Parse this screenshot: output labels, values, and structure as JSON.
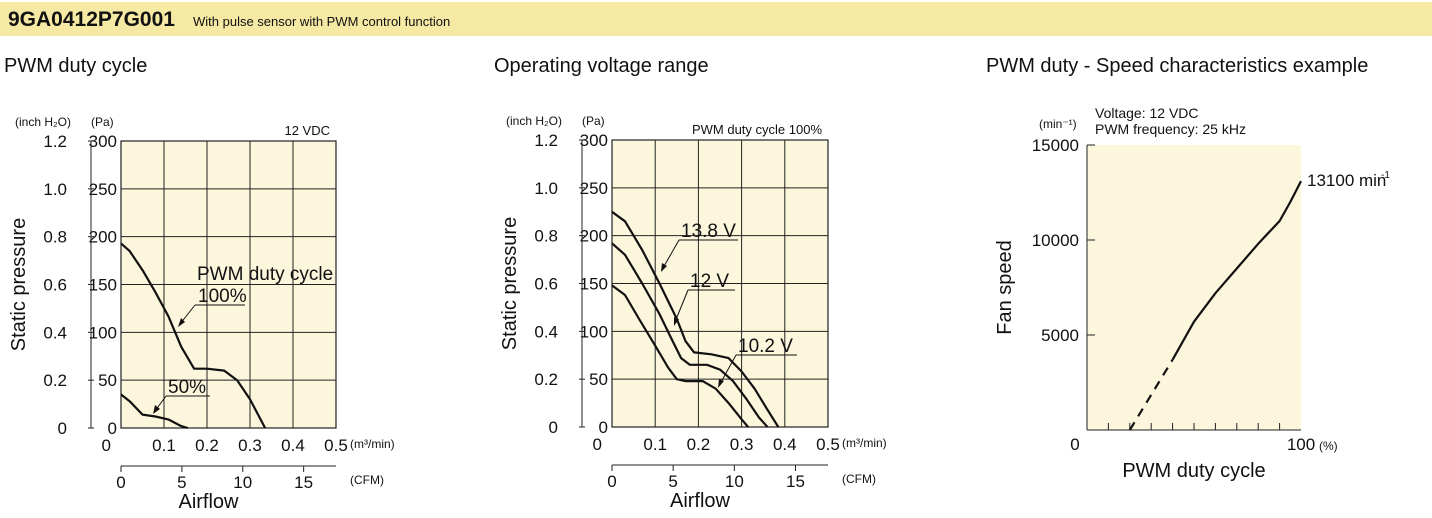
{
  "header": {
    "model": "9GA0412P7G001",
    "description": "With pulse sensor with PWM control function"
  },
  "colors": {
    "header_bg": "#f5e9a4",
    "plot_bg": "#fbf6dc",
    "line": "#111111"
  },
  "chart_data": [
    {
      "type": "line",
      "section_title": "PWM duty cycle",
      "xlabel": "Airflow",
      "ylabel": "Static pressure",
      "y_unit_inch": "(inch H₂O)",
      "y_unit_pa": "(Pa)",
      "x_unit_m3": "(m³/min)",
      "x_unit_cfm": "(CFM)",
      "condition": "12 VDC",
      "xlim_m3": [
        0,
        0.5
      ],
      "ylim_pa": [
        0,
        300
      ],
      "x_ticks_m3": [
        "0",
        "0.1",
        "0.2",
        "0.3",
        "0.4",
        "0.5"
      ],
      "x_ticks_cfm": [
        "0",
        "5",
        "10",
        "15"
      ],
      "y_ticks_pa": [
        "0",
        "50",
        "100",
        "150",
        "200",
        "250",
        "300"
      ],
      "y_ticks_inch": [
        "0",
        "0.2",
        "0.4",
        "0.6",
        "0.8",
        "1.0",
        "1.2"
      ],
      "series": [
        {
          "name": "100%",
          "label": "100%",
          "label_top": "PWM duty cycle",
          "x": [
            0,
            0.02,
            0.05,
            0.08,
            0.11,
            0.14,
            0.17,
            0.2,
            0.24,
            0.27,
            0.3,
            0.335
          ],
          "y": [
            193,
            185,
            165,
            142,
            117,
            85,
            62,
            62,
            60,
            50,
            30,
            0
          ]
        },
        {
          "name": "50%",
          "label": "50%",
          "x": [
            0,
            0.02,
            0.05,
            0.08,
            0.11,
            0.14,
            0.155
          ],
          "y": [
            35,
            28,
            14,
            12,
            9,
            2,
            0
          ]
        }
      ]
    },
    {
      "type": "line",
      "section_title": "Operating voltage range",
      "xlabel": "Airflow",
      "ylabel": "Static pressure",
      "y_unit_inch": "(inch H₂O)",
      "y_unit_pa": "(Pa)",
      "x_unit_m3": "(m³/min)",
      "x_unit_cfm": "(CFM)",
      "condition": "PWM duty cycle 100%",
      "xlim_m3": [
        0,
        0.5
      ],
      "ylim_pa": [
        0,
        300
      ],
      "x_ticks_m3": [
        "0",
        "0.1",
        "0.2",
        "0.3",
        "0.4",
        "0.5"
      ],
      "x_ticks_cfm": [
        "0",
        "5",
        "10",
        "15"
      ],
      "y_ticks_pa": [
        "0",
        "50",
        "100",
        "150",
        "200",
        "250",
        "300"
      ],
      "y_ticks_inch": [
        "0",
        "0.2",
        "0.4",
        "0.6",
        "0.8",
        "1.0",
        "1.2"
      ],
      "series": [
        {
          "name": "13.8 V",
          "label": "13.8 V",
          "x": [
            0,
            0.03,
            0.07,
            0.11,
            0.15,
            0.17,
            0.19,
            0.23,
            0.27,
            0.3,
            0.33,
            0.36,
            0.385
          ],
          "y": [
            225,
            215,
            185,
            150,
            113,
            90,
            78,
            76,
            72,
            58,
            40,
            18,
            0
          ]
        },
        {
          "name": "12 V",
          "label": "12 V",
          "x": [
            0,
            0.03,
            0.07,
            0.11,
            0.14,
            0.16,
            0.18,
            0.22,
            0.25,
            0.28,
            0.31,
            0.34,
            0.36
          ],
          "y": [
            192,
            180,
            150,
            118,
            90,
            72,
            65,
            65,
            60,
            48,
            30,
            10,
            0
          ]
        },
        {
          "name": "10.2 V",
          "label": "10.2 V",
          "x": [
            0,
            0.03,
            0.06,
            0.1,
            0.13,
            0.15,
            0.17,
            0.21,
            0.24,
            0.27,
            0.3,
            0.315
          ],
          "y": [
            148,
            138,
            115,
            85,
            62,
            50,
            48,
            48,
            40,
            25,
            8,
            0
          ]
        }
      ]
    },
    {
      "type": "line",
      "section_title": "PWM duty - Speed characteristics example",
      "xlabel": "PWM duty cycle",
      "ylabel": "Fan speed",
      "y_unit": "(min⁻¹)",
      "x_unit": "(%)",
      "conditions": [
        "Voltage: 12 VDC",
        "PWM frequency: 25 kHz"
      ],
      "xlim": [
        0,
        100
      ],
      "ylim": [
        0,
        15000
      ],
      "x_ticks": [
        "0",
        "100"
      ],
      "y_ticks": [
        "5000",
        "10000",
        "15000"
      ],
      "end_label": "13100 min",
      "end_label_sup": "-1",
      "series": [
        {
          "name": "dashed",
          "dashed": true,
          "x": [
            20,
            40
          ],
          "y": [
            0,
            3700
          ]
        },
        {
          "name": "solid",
          "x": [
            40,
            50,
            60,
            70,
            80,
            90,
            95,
            100
          ],
          "y": [
            3700,
            5700,
            7200,
            8500,
            9800,
            11000,
            12000,
            13100
          ]
        }
      ]
    }
  ]
}
